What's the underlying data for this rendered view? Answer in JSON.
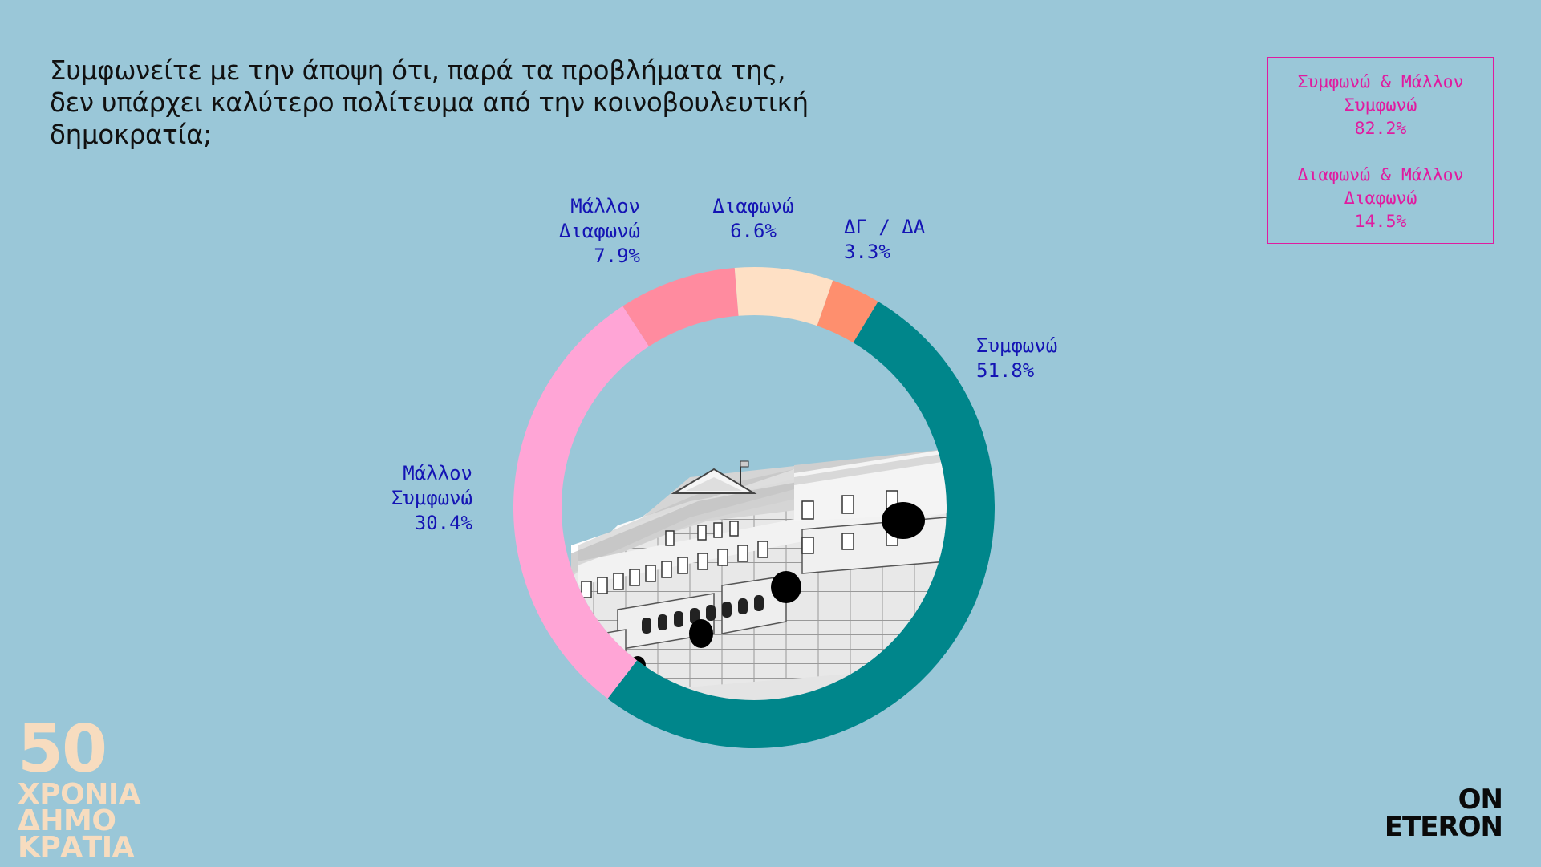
{
  "question": {
    "lines": [
      "Συμφωνείτε με την άποψη ότι, παρά τα προβλήματα της,",
      "δεν υπάρχει καλύτερο  πολίτευμα από την κοινοβουλευτική",
      "δημοκρατία;"
    ]
  },
  "summary": {
    "agree_label_1": "Συμφωνώ & Μάλλον",
    "agree_label_2": "Συμφωνώ",
    "agree_value": "82.2%",
    "disagree_label_1": "Διαφωνώ & Μάλλον",
    "disagree_label_2": "Διαφωνώ",
    "disagree_value": "14.5%"
  },
  "chart_data": {
    "type": "pie",
    "variant": "donut",
    "start_angle_deg": 31,
    "direction": "clockwise",
    "slices": [
      {
        "label": "Συμφωνώ",
        "value": 51.8,
        "color": "#00868b"
      },
      {
        "label": "Μάλλον Συμφωνώ",
        "value": 30.4,
        "color": "#ffa5d6"
      },
      {
        "label": "Μάλλον Διαφωνώ",
        "value": 7.9,
        "color": "#ff8b9f"
      },
      {
        "label": "Διαφωνώ",
        "value": 6.6,
        "color": "#fee0c5"
      },
      {
        "label": "ΔΓ / ΔΑ",
        "value": 3.3,
        "color": "#fe8f6e"
      }
    ]
  },
  "labels": {
    "agree": {
      "name": "Συμφωνώ",
      "value": "51.8%"
    },
    "rather_agree": {
      "name_1": "Μάλλον",
      "name_2": "Συμφωνώ",
      "value": "30.4%"
    },
    "rather_disagree": {
      "name_1": "Μάλλον",
      "name_2": "Διαφωνώ",
      "value": "7.9%"
    },
    "disagree": {
      "name": "Διαφωνώ",
      "value": "6.6%"
    },
    "dk_na": {
      "name": "ΔΓ / ΔΑ",
      "value": "3.3%"
    }
  },
  "logo_left": {
    "number": "50",
    "line1": "ΧΡΟΝΙΑ",
    "line2": "ΔΗΜΟ",
    "line3": "ΚΡΑΤΙΑ"
  },
  "logo_right": {
    "line1": "ON",
    "line2": "ETERON"
  },
  "colors": {
    "background": "#9ac7d8",
    "label_text": "#1414b4",
    "summary_text": "#e01ba0",
    "logo_left": "#f7dcbf"
  }
}
